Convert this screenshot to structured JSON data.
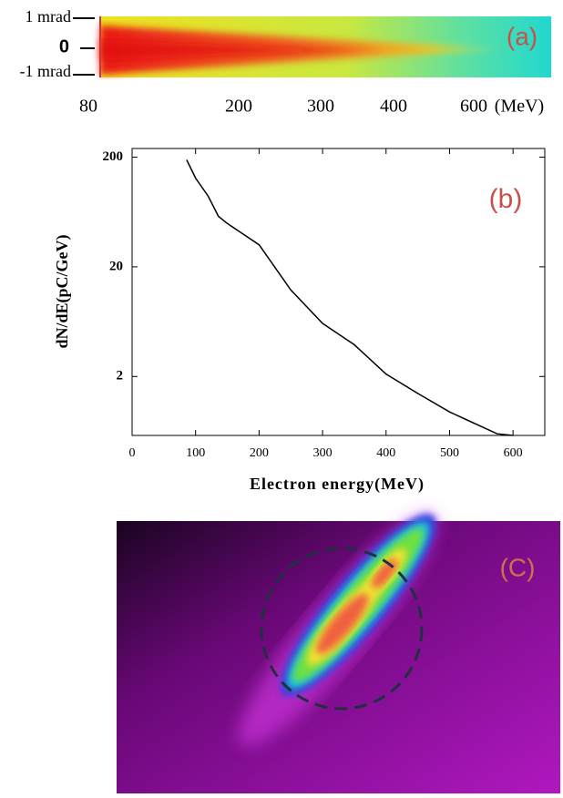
{
  "panel_a": {
    "label": "(a)",
    "y_labels": [
      "1 mrad",
      "0",
      "-1 mrad"
    ],
    "x_labels": [
      "80",
      "200",
      "300",
      "400",
      "600",
      "(MeV)"
    ]
  },
  "chart_data": {
    "type": "line",
    "label": "(b)",
    "x_label": "Electron energy(MeV)",
    "y_label": "dN/dE(pC/GeV)",
    "x": [
      86,
      100,
      120,
      136,
      150,
      200,
      250,
      300,
      350,
      400,
      450,
      500,
      550,
      575,
      600
    ],
    "values": [
      189,
      129,
      88,
      57.7,
      49.7,
      31.8,
      12.3,
      6.1,
      3.9,
      2.1,
      1.4,
      0.95,
      0.7,
      0.6,
      0.58
    ],
    "color": "#000000",
    "xlim": [
      0,
      650
    ],
    "ylim": [
      0.58,
      240
    ],
    "log_y": true,
    "xticks": [
      0,
      100,
      200,
      300,
      400,
      500,
      600
    ],
    "yticks": [
      2,
      20,
      200
    ]
  },
  "panel_c": {
    "label": "(C)"
  }
}
